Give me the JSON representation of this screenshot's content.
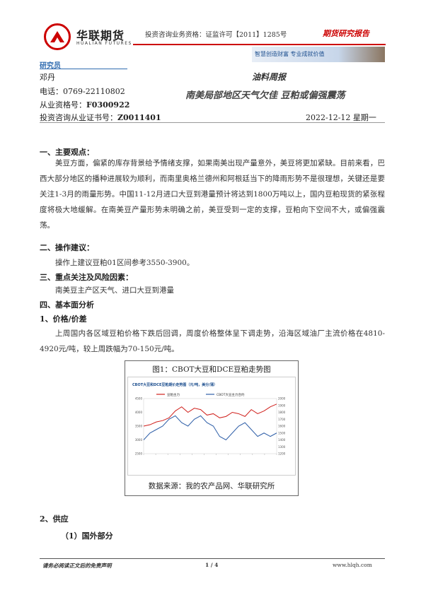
{
  "header": {
    "logo_cn": "华联期货",
    "logo_en": "HUALIAN FUTURES",
    "license": "投资咨询业务资格：证监许可【2011】1285号",
    "report_type": "期货研究报告",
    "banner": "智慧创造财富  专业成就价值"
  },
  "researcher": {
    "title": "研究员",
    "name": "邓丹",
    "phone": "电话：0769-22110802",
    "qual_label": "从业资格号：",
    "qual_no": "F0300922",
    "invest_label": "投资咨询从业证书号：",
    "invest_no": "Z0011401"
  },
  "report": {
    "weekly": "油料周报",
    "subtitle": "南美局部地区天气欠佳  豆粕或偏强震荡",
    "date": "2022-12-12  星期一"
  },
  "sections": {
    "s1_title": "一、主要观点：",
    "s1_p1": "美豆方面，偏紧的库存背景给予情绪支撑，如果南美出现产量意外，美豆将更加紧缺。目前来看，巴西大部分地区的播种进展较为顺利，而南里奥格兰德州和阿根廷当下的降雨形势不是很理想，关键还是要关注1-3月的雨量形势。中国11-12月进口大豆到港量预计将达到1800万吨以上，国内豆粕现货的紧张程度将极大地缓解。在南美豆产量形势未明确之前，美豆受到一定的支撑，豆粕向下空间不大，或偏强震荡。",
    "s2_title": "二、操作建议：",
    "s2_text": "操作上建议豆粕01区间参考3550-3900。",
    "s3_title": "三、重点关注及风险因素：",
    "s3_text": "南美豆主产区天气、进口大豆到港量",
    "s4_title": "四、基本面分析",
    "s4_1_title": "1、价格/价差",
    "s4_1_p": "上周国内各区域豆粕价格下跌后回调，周度价格整体呈下调走势，沿海区域油厂主流价格在4810-4920元/吨，较上周跌幅为70-150元/吨。",
    "fig_title": "图1：CBOT大豆和DCE豆粕走势图",
    "fig_source": "数据来源：我的农产品网、华联研究所",
    "s4_2_title": "2、供应",
    "s4_2_1_title": "（1）国外部分"
  },
  "chart_data": {
    "type": "line",
    "title": "CBOT大豆和DCE豆粕期价走势图（元/吨，美分/蒲）",
    "series": [
      {
        "name": "豆粕主力",
        "values": [
          3500,
          3550,
          3650,
          3700,
          3800,
          4050,
          4200,
          4000,
          4150,
          4100,
          3900,
          3950,
          3800,
          3850,
          4000,
          3950,
          3850,
          4100,
          3950,
          4050,
          4200,
          4300
        ]
      },
      {
        "name": "CBOT大豆主力合约",
        "values": [
          1400,
          1500,
          1550,
          1600,
          1700,
          1750,
          1650,
          1600,
          1700,
          1750,
          1650,
          1600,
          1450,
          1400,
          1500,
          1600,
          1650,
          1550,
          1450,
          1500,
          1450,
          1500
        ]
      }
    ],
    "left_ticks": [
      "2500",
      "3000",
      "3500",
      "4000",
      "4500"
    ],
    "right_ticks": [
      "1200",
      "1300",
      "1400",
      "1500",
      "1600",
      "1700",
      "1800",
      "1900",
      "2000"
    ],
    "colors": {
      "s1": "#d0201c",
      "s2": "#2f5fa8"
    }
  },
  "footer": {
    "disclaimer": "请务必阅读正文后的免责声明",
    "page": "1 / 4",
    "website": "www.hlqh.com"
  }
}
